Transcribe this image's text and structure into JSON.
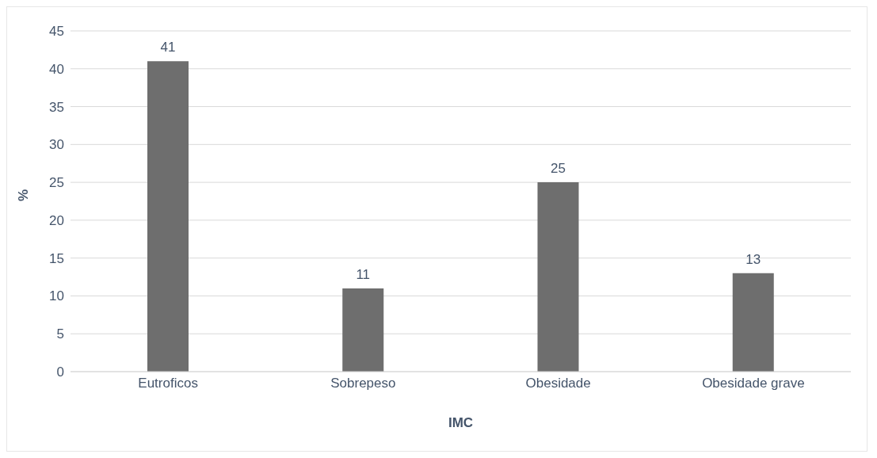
{
  "chart_data": {
    "type": "bar",
    "xlabel": "IMC",
    "ylabel": "%",
    "categories": [
      "Eutroficos",
      "Sobrepeso",
      "Obesidade",
      "Obesidade grave"
    ],
    "values": [
      41,
      11,
      25,
      13
    ],
    "color": "#6e6e6e",
    "ylim": [
      0,
      45
    ],
    "yticks": [
      0,
      5,
      10,
      15,
      20,
      25,
      30,
      35,
      40,
      45
    ],
    "grid": "y",
    "data_labels": true
  }
}
